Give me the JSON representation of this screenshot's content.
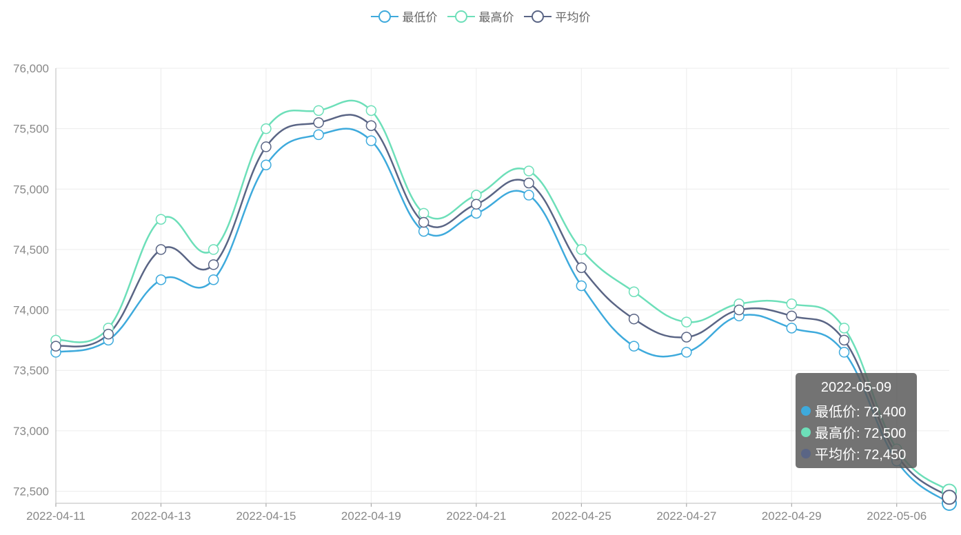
{
  "colors": {
    "min": "#3eaadc",
    "max": "#6ddfb9",
    "avg": "#5a6585"
  },
  "legend": [
    {
      "key": "min",
      "label": "最低价",
      "color": "#3eaadc"
    },
    {
      "key": "max",
      "label": "最高价",
      "color": "#6ddfb9"
    },
    {
      "key": "avg",
      "label": "平均价",
      "color": "#5a6585"
    }
  ],
  "tooltip": {
    "title": "2022-05-09",
    "rows": [
      {
        "label": "最低价: 72,400",
        "color": "#3eaadc"
      },
      {
        "label": "最高价: 72,500",
        "color": "#6ddfb9"
      },
      {
        "label": "平均价: 72,450",
        "color": "#5a6585"
      }
    ]
  },
  "chart_data": {
    "type": "line",
    "title": "",
    "xlabel": "",
    "ylabel": "",
    "ylim": [
      72500,
      76000
    ],
    "yticks": [
      72500,
      73000,
      73500,
      74000,
      74500,
      75000,
      75500,
      76000
    ],
    "ytick_labels": [
      "72,500",
      "73,000",
      "73,500",
      "74,000",
      "74,500",
      "75,000",
      "75,500",
      "76,000"
    ],
    "x": [
      "2022-04-11",
      "2022-04-12",
      "2022-04-13",
      "2022-04-14",
      "2022-04-15",
      "2022-04-18",
      "2022-04-19",
      "2022-04-20",
      "2022-04-21",
      "2022-04-22",
      "2022-04-25",
      "2022-04-26",
      "2022-04-27",
      "2022-04-28",
      "2022-04-29",
      "2022-05-05",
      "2022-05-06",
      "2022-05-09"
    ],
    "x_tick_labels": [
      "2022-04-11",
      "2022-04-13",
      "2022-04-15",
      "2022-04-19",
      "2022-04-21",
      "2022-04-25",
      "2022-04-27",
      "2022-04-29",
      "2022-05-06"
    ],
    "x_tick_label_every": 2,
    "series": [
      {
        "key": "min",
        "name": "最低价",
        "values": [
          73650,
          73750,
          74250,
          74250,
          75200,
          75450,
          75400,
          74650,
          74800,
          74950,
          74200,
          73700,
          73650,
          73950,
          73850,
          73650,
          72750,
          72400
        ]
      },
      {
        "key": "max",
        "name": "最高价",
        "values": [
          73750,
          73850,
          74750,
          74500,
          75500,
          75650,
          75650,
          74800,
          74950,
          75150,
          74500,
          74150,
          73900,
          74050,
          74050,
          73850,
          72850,
          72500
        ]
      },
      {
        "key": "avg",
        "name": "平均价",
        "values": [
          73700,
          73800,
          74500,
          74375,
          75350,
          75550,
          75525,
          74725,
          74875,
          75050,
          74350,
          73925,
          73775,
          74000,
          73950,
          73750,
          72800,
          72450
        ]
      }
    ],
    "grid": true,
    "legend_position": "top-center",
    "highlighted_index": 17
  }
}
